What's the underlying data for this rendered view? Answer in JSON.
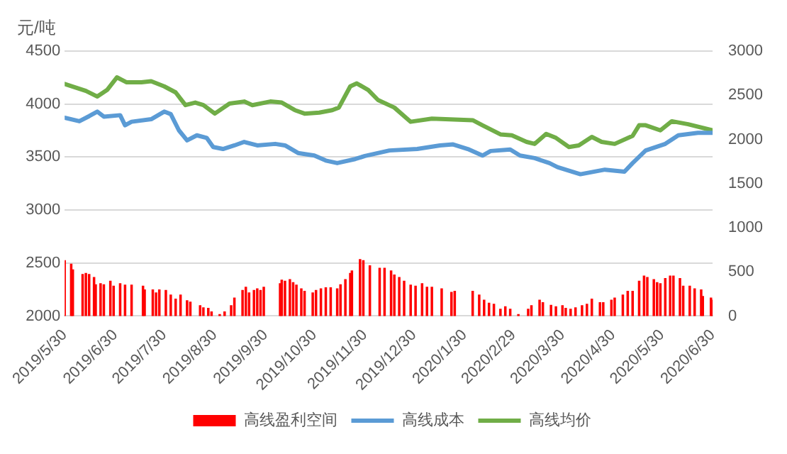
{
  "chart_data": {
    "type": "line",
    "ylabel": "元/吨",
    "xlim": [
      "2019-05-30",
      "2020-06-30"
    ],
    "xticks": [
      {
        "value": "2019-05-30",
        "label": "2019/5/30"
      },
      {
        "value": "2019-06-30",
        "label": "2019/6/30"
      },
      {
        "value": "2019-07-30",
        "label": "2019/7/30"
      },
      {
        "value": "2019-08-30",
        "label": "2019/8/30"
      },
      {
        "value": "2019-09-30",
        "label": "2019/9/30"
      },
      {
        "value": "2019-10-30",
        "label": "2019/10/30"
      },
      {
        "value": "2019-11-30",
        "label": "2019/11/30"
      },
      {
        "value": "2019-12-30",
        "label": "2019/12/30"
      },
      {
        "value": "2020-01-30",
        "label": "2020/1/30"
      },
      {
        "value": "2020-02-29",
        "label": "2020/2/29"
      },
      {
        "value": "2020-03-30",
        "label": "2020/3/30"
      },
      {
        "value": "2020-04-30",
        "label": "2020/4/30"
      },
      {
        "value": "2020-05-30",
        "label": "2020/5/30"
      },
      {
        "value": "2020-06-30",
        "label": "2020/6/30"
      }
    ],
    "ylim": [
      2000,
      4500
    ],
    "yticks": [
      2000,
      2500,
      3000,
      3500,
      4000,
      4500
    ],
    "y2lim": [
      0,
      3000
    ],
    "y2ticks": [
      0,
      500,
      1000,
      1500,
      2000,
      2500,
      3000
    ],
    "grid": "y",
    "legend": "bottom",
    "marker": "none",
    "series": [
      {
        "name": "高线盈利空间",
        "type": "bar",
        "axis": "y2",
        "color": "#ff0000",
        "x": [
          "2019-05-30",
          "2019-06-03",
          "2019-06-04",
          "2019-06-10",
          "2019-06-12",
          "2019-06-14",
          "2019-06-17",
          "2019-06-18",
          "2019-06-21",
          "2019-06-23",
          "2019-06-27",
          "2019-06-29",
          "2019-07-03",
          "2019-07-06",
          "2019-07-10",
          "2019-07-17",
          "2019-07-18",
          "2019-07-23",
          "2019-07-25",
          "2019-07-27",
          "2019-07-31",
          "2019-08-03",
          "2019-08-06",
          "2019-08-09",
          "2019-08-13",
          "2019-08-15",
          "2019-08-21",
          "2019-08-23",
          "2019-08-26",
          "2019-08-28",
          "2019-09-02",
          "2019-09-05",
          "2019-09-09",
          "2019-09-11",
          "2019-09-16",
          "2019-09-18",
          "2019-09-20",
          "2019-09-23",
          "2019-09-25",
          "2019-09-27",
          "2019-09-29",
          "2019-10-09",
          "2019-10-10",
          "2019-10-12",
          "2019-10-15",
          "2019-10-17",
          "2019-10-19",
          "2019-10-22",
          "2019-10-24",
          "2019-10-29",
          "2019-10-31",
          "2019-11-03",
          "2019-11-06",
          "2019-11-09",
          "2019-11-13",
          "2019-11-15",
          "2019-11-18",
          "2019-11-21",
          "2019-11-22",
          "2019-11-27",
          "2019-11-29",
          "2019-12-03",
          "2019-12-09",
          "2019-12-12",
          "2019-12-16",
          "2019-12-18",
          "2019-12-21",
          "2019-12-24",
          "2019-12-28",
          "2019-12-31",
          "2020-01-04",
          "2020-01-07",
          "2020-01-10",
          "2020-01-16",
          "2020-01-22",
          "2020-01-24",
          "2020-02-04",
          "2020-02-08",
          "2020-02-11",
          "2020-02-14",
          "2020-02-17",
          "2020-02-21",
          "2020-02-24",
          "2020-02-27",
          "2020-03-03",
          "2020-03-09",
          "2020-03-11",
          "2020-03-16",
          "2020-03-18",
          "2020-03-23",
          "2020-03-26",
          "2020-03-30",
          "2020-04-01",
          "2020-04-04",
          "2020-04-07",
          "2020-04-11",
          "2020-04-14",
          "2020-04-17",
          "2020-04-22",
          "2020-04-24",
          "2020-04-29",
          "2020-05-01",
          "2020-05-06",
          "2020-05-09",
          "2020-05-12",
          "2020-05-16",
          "2020-05-19",
          "2020-05-21",
          "2020-05-25",
          "2020-05-27",
          "2020-05-29",
          "2020-06-01",
          "2020-06-04",
          "2020-06-06",
          "2020-06-10",
          "2020-06-12",
          "2020-06-16",
          "2020-06-19",
          "2020-06-23",
          "2020-06-24",
          "2020-06-29",
          "2020-06-30"
        ],
        "values": [
          627,
          587,
          523,
          470,
          482,
          470,
          436,
          354,
          366,
          354,
          395,
          337,
          366,
          349,
          349,
          337,
          296,
          296,
          261,
          296,
          290,
          238,
          192,
          238,
          174,
          157,
          116,
          93,
          87,
          46,
          17,
          46,
          116,
          203,
          290,
          325,
          261,
          290,
          308,
          290,
          325,
          366,
          407,
          395,
          412,
          378,
          349,
          308,
          279,
          261,
          290,
          308,
          320,
          320,
          308,
          354,
          412,
          482,
          511,
          639,
          627,
          569,
          540,
          540,
          511,
          465,
          436,
          395,
          349,
          337,
          366,
          325,
          325,
          308,
          267,
          279,
          279,
          238,
          180,
          145,
          134,
          76,
          105,
          76,
          17,
          76,
          116,
          180,
          151,
          122,
          105,
          116,
          87,
          76,
          93,
          116,
          134,
          192,
          151,
          151,
          180,
          203,
          238,
          279,
          279,
          395,
          453,
          436,
          412,
          378,
          366,
          424,
          453,
          453,
          424,
          337,
          337,
          308,
          296,
          221,
          203,
          180
        ]
      },
      {
        "name": "高线成本",
        "axis": "y",
        "color": "#5b9bd5",
        "x": [
          "2019-05-30",
          "2019-06-08",
          "2019-06-14",
          "2019-06-19",
          "2019-06-23",
          "2019-07-03",
          "2019-07-06",
          "2019-07-10",
          "2019-07-22",
          "2019-07-30",
          "2019-08-03",
          "2019-08-08",
          "2019-08-13",
          "2019-08-19",
          "2019-08-25",
          "2019-08-29",
          "2019-09-04",
          "2019-09-11",
          "2019-09-17",
          "2019-09-25",
          "2019-10-06",
          "2019-10-12",
          "2019-10-20",
          "2019-10-30",
          "2019-11-06",
          "2019-11-13",
          "2019-11-24",
          "2019-11-30",
          "2019-12-15",
          "2020-01-01",
          "2020-01-15",
          "2020-01-23",
          "2020-02-01",
          "2020-02-10",
          "2020-02-15",
          "2020-02-27",
          "2020-03-04",
          "2020-03-13",
          "2020-03-22",
          "2020-03-27",
          "2020-04-10",
          "2020-04-25",
          "2020-05-07",
          "2020-05-12",
          "2020-05-20",
          "2020-06-01",
          "2020-06-09",
          "2020-06-21",
          "2020-06-30"
        ],
        "values": [
          3871,
          3838,
          3886,
          3929,
          3881,
          3895,
          3800,
          3833,
          3857,
          3929,
          3905,
          3752,
          3657,
          3705,
          3681,
          3595,
          3576,
          3610,
          3643,
          3610,
          3624,
          3610,
          3538,
          3514,
          3467,
          3443,
          3481,
          3510,
          3562,
          3576,
          3610,
          3619,
          3576,
          3514,
          3557,
          3571,
          3514,
          3490,
          3443,
          3405,
          3338,
          3381,
          3362,
          3443,
          3562,
          3624,
          3705,
          3729,
          3729
        ]
      },
      {
        "name": "高线均价",
        "axis": "y",
        "color": "#70ad47",
        "x": [
          "2019-05-30",
          "2019-06-12",
          "2019-06-19",
          "2019-06-25",
          "2019-07-01",
          "2019-07-07",
          "2019-07-16",
          "2019-07-22",
          "2019-07-30",
          "2019-08-06",
          "2019-08-12",
          "2019-08-18",
          "2019-08-23",
          "2019-08-30",
          "2019-09-08",
          "2019-09-17",
          "2019-09-22",
          "2019-10-03",
          "2019-10-10",
          "2019-10-18",
          "2019-10-24",
          "2019-11-02",
          "2019-11-10",
          "2019-11-14",
          "2019-11-21",
          "2019-11-25",
          "2019-12-02",
          "2019-12-08",
          "2019-12-18",
          "2019-12-28",
          "2020-01-10",
          "2020-02-04",
          "2020-02-10",
          "2020-02-21",
          "2020-02-28",
          "2020-03-08",
          "2020-03-13",
          "2020-03-20",
          "2020-03-26",
          "2020-04-03",
          "2020-04-09",
          "2020-04-17",
          "2020-04-23",
          "2020-05-01",
          "2020-05-12",
          "2020-05-16",
          "2020-05-20",
          "2020-05-29",
          "2020-06-05",
          "2020-06-15",
          "2020-06-30"
        ],
        "values": [
          4190,
          4124,
          4071,
          4133,
          4252,
          4205,
          4205,
          4215,
          4167,
          4110,
          3990,
          4014,
          3990,
          3910,
          4005,
          4024,
          3990,
          4024,
          4014,
          3943,
          3910,
          3919,
          3943,
          3967,
          4167,
          4195,
          4133,
          4038,
          3967,
          3833,
          3862,
          3848,
          3800,
          3714,
          3705,
          3643,
          3624,
          3719,
          3681,
          3595,
          3610,
          3690,
          3643,
          3624,
          3700,
          3800,
          3800,
          3752,
          3838,
          3810,
          3752
        ]
      }
    ]
  }
}
